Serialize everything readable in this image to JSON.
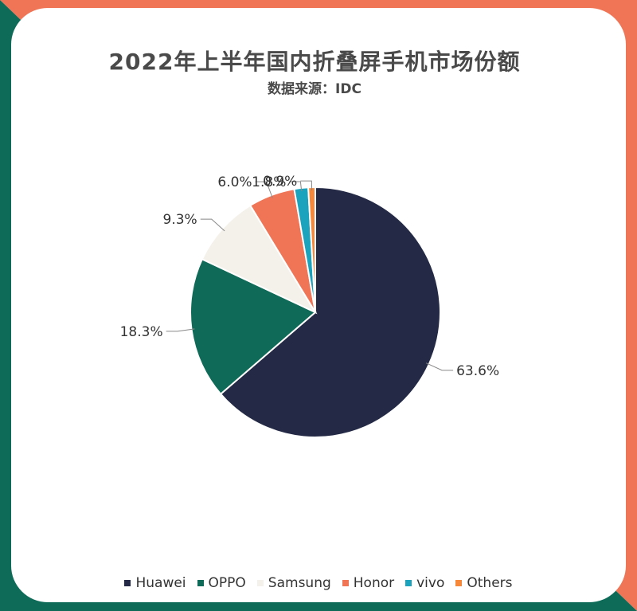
{
  "title": "2022年上半年国内折叠屏手机市场份额",
  "subtitle": "数据来源：IDC",
  "colors": {
    "frame_green": "#0d6b58",
    "frame_orange": "#ef7556"
  },
  "chart_data": {
    "type": "pie",
    "unit": "%",
    "legend_position": "bottom",
    "slices": [
      {
        "name": "Huawei",
        "value": 63.6,
        "label": "63.6%",
        "color": "#242a45"
      },
      {
        "name": "OPPO",
        "value": 18.3,
        "label": "18.3%",
        "color": "#0f6b58"
      },
      {
        "name": "Samsung",
        "value": 9.3,
        "label": "9.3%",
        "color": "#f4f0ea"
      },
      {
        "name": "Honor",
        "value": 6.0,
        "label": "6.0%",
        "color": "#ef7556"
      },
      {
        "name": "vivo",
        "value": 1.8,
        "label": "1.8%",
        "color": "#1ba3bd"
      },
      {
        "name": "Others",
        "value": 0.9,
        "label": "0.9%",
        "color": "#f5883a"
      }
    ]
  }
}
